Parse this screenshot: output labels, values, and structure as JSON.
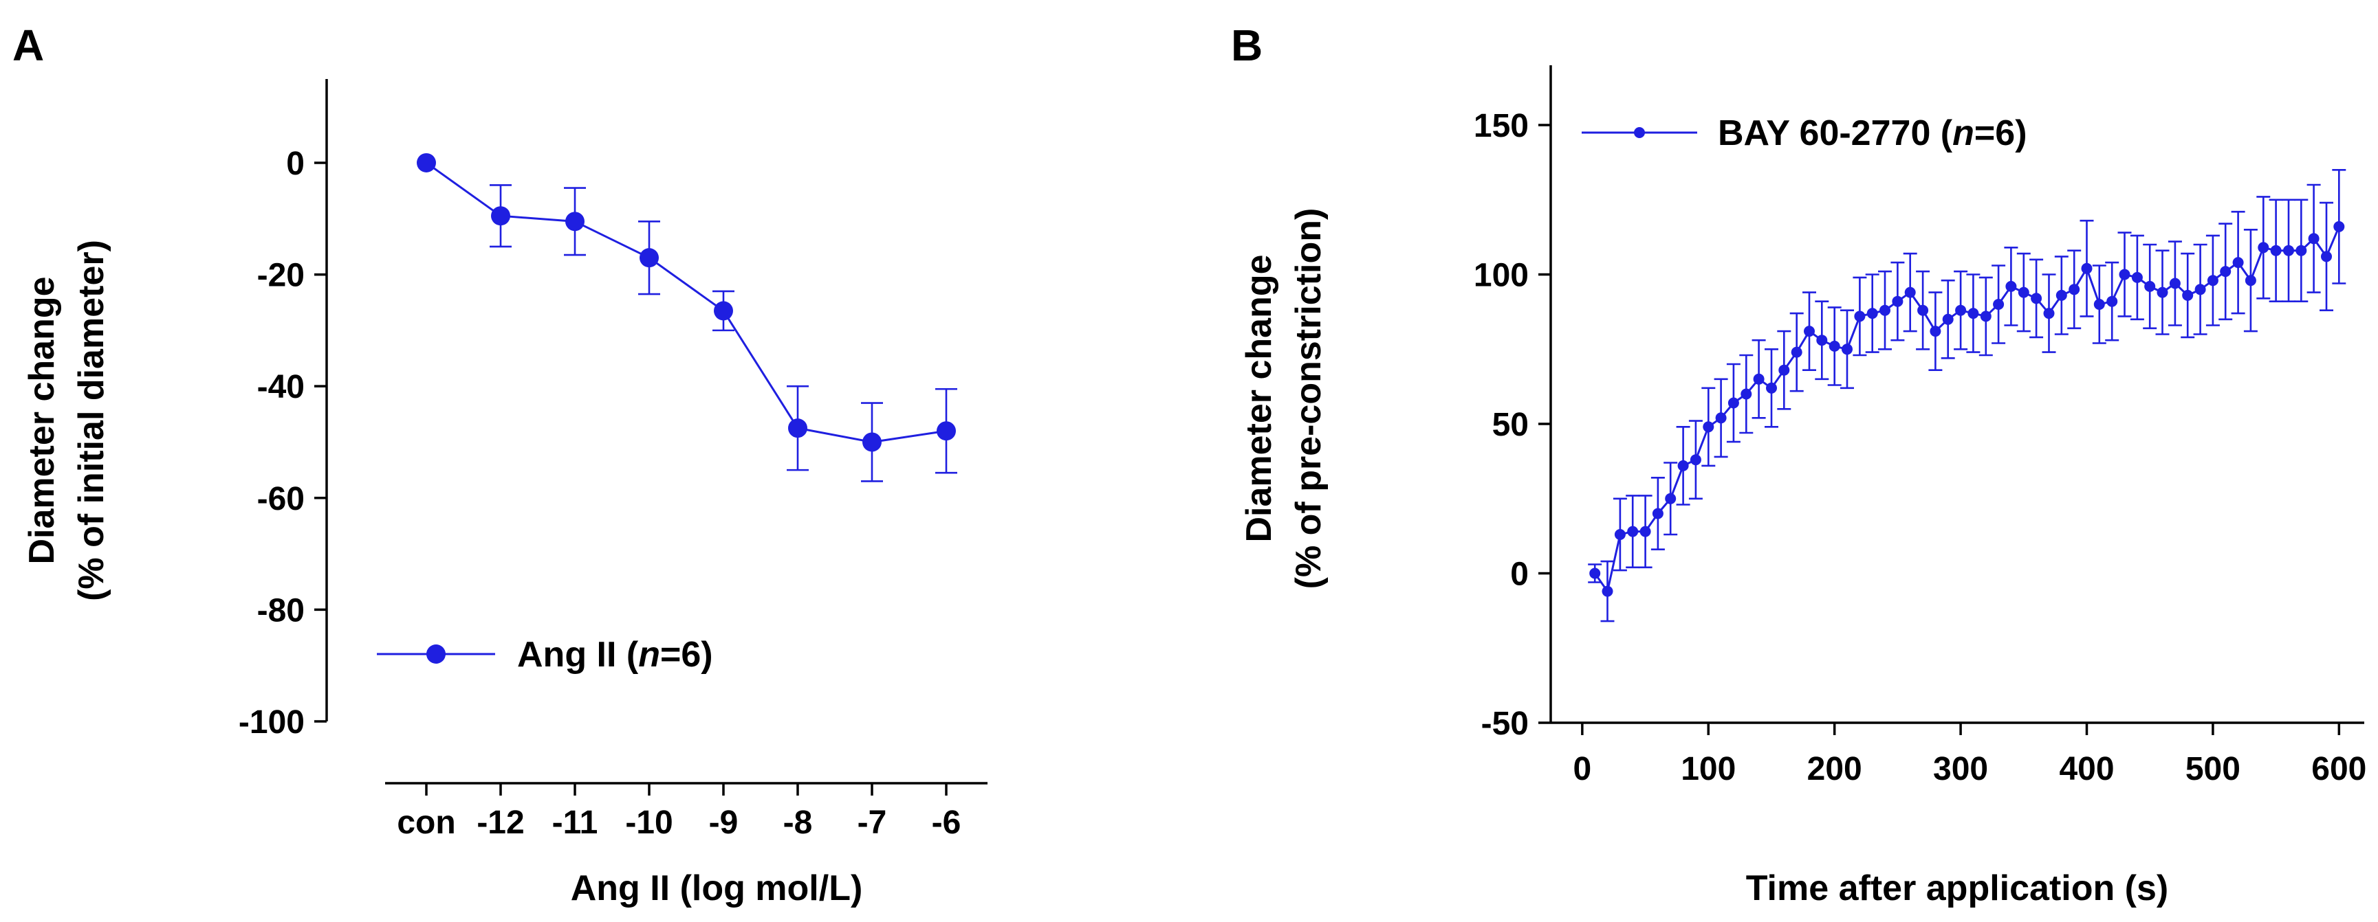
{
  "chart_data": [
    {
      "panel": "A",
      "type": "line",
      "title": "",
      "xlabel": "Ang II (log mol/L)",
      "ylabel_line1": "Diameter change",
      "ylabel_line2": "(% of initial diameter)",
      "ylim": [
        -100,
        15
      ],
      "yticks": [
        0,
        -20,
        -40,
        -60,
        -80,
        -100
      ],
      "yticklabels": [
        "0",
        "-20",
        "-40",
        "-60",
        "-80",
        "-100"
      ],
      "categories": [
        "con",
        "-12",
        "-11",
        "-10",
        "-9",
        "-8",
        "-7",
        "-6"
      ],
      "legend": {
        "name": "Ang II",
        "n_label": "n",
        "n_value": "=6",
        "open": " (",
        "close": ")",
        "placement": "lower-left"
      },
      "series": [
        {
          "name": "Ang II (n=6)",
          "values": [
            0,
            -9.5,
            -10.5,
            -17,
            -26.5,
            -47.5,
            -50,
            -48
          ],
          "errors": [
            0,
            5.5,
            6,
            6.5,
            3.5,
            7.5,
            7,
            7.5
          ],
          "color": "#1f1fe0"
        }
      ]
    },
    {
      "panel": "B",
      "type": "line",
      "title": "",
      "xlabel": "Time after application (s)",
      "ylabel_line1": "Diameter change",
      "ylabel_line2": "(% of pre-constriction)",
      "xlim": [
        -25,
        620
      ],
      "ylim": [
        -50,
        170
      ],
      "xticks": [
        0,
        100,
        200,
        300,
        400,
        500,
        600
      ],
      "xticklabels": [
        "0",
        "100",
        "200",
        "300",
        "400",
        "500",
        "600"
      ],
      "yticks": [
        150,
        100,
        50,
        0,
        -50
      ],
      "yticklabels": [
        "150",
        "100",
        "50",
        "0",
        "-50"
      ],
      "legend": {
        "name": "BAY 60-2770",
        "n_label": "n",
        "n_value": "=6",
        "open": " (",
        "close": ")",
        "placement": "top-left"
      },
      "series": [
        {
          "name": "BAY 60-2770 (n=6)",
          "color": "#1f1fe0",
          "x": [
            10,
            20,
            30,
            40,
            50,
            60,
            70,
            80,
            90,
            100,
            110,
            120,
            130,
            140,
            150,
            160,
            170,
            180,
            190,
            200,
            210,
            220,
            230,
            240,
            250,
            260,
            270,
            280,
            290,
            300,
            310,
            320,
            330,
            340,
            350,
            360,
            370,
            380,
            390,
            400,
            410,
            420,
            430,
            440,
            450,
            460,
            470,
            480,
            490,
            500,
            510,
            520,
            530,
            540,
            550,
            560,
            570,
            580,
            590,
            600
          ],
          "values": [
            0,
            -6,
            13,
            14,
            14,
            20,
            25,
            36,
            38,
            49,
            52,
            57,
            60,
            65,
            62,
            68,
            74,
            81,
            78,
            76,
            75,
            86,
            87,
            88,
            91,
            94,
            88,
            81,
            85,
            88,
            87,
            86,
            90,
            96,
            94,
            92,
            87,
            93,
            95,
            102,
            90,
            91,
            100,
            99,
            96,
            94,
            97,
            93,
            95,
            98,
            101,
            104,
            98,
            109,
            108,
            108,
            108,
            112,
            106,
            116
          ],
          "errors": [
            3,
            10,
            12,
            12,
            12,
            12,
            12,
            13,
            13,
            13,
            13,
            13,
            13,
            13,
            13,
            13,
            13,
            13,
            13,
            13,
            13,
            13,
            13,
            13,
            13,
            13,
            13,
            13,
            13,
            13,
            13,
            13,
            13,
            13,
            13,
            13,
            13,
            13,
            13,
            16,
            13,
            13,
            14,
            14,
            14,
            14,
            14,
            14,
            15,
            15,
            16,
            17,
            17,
            17,
            17,
            17,
            17,
            18,
            18,
            19
          ]
        }
      ]
    }
  ]
}
